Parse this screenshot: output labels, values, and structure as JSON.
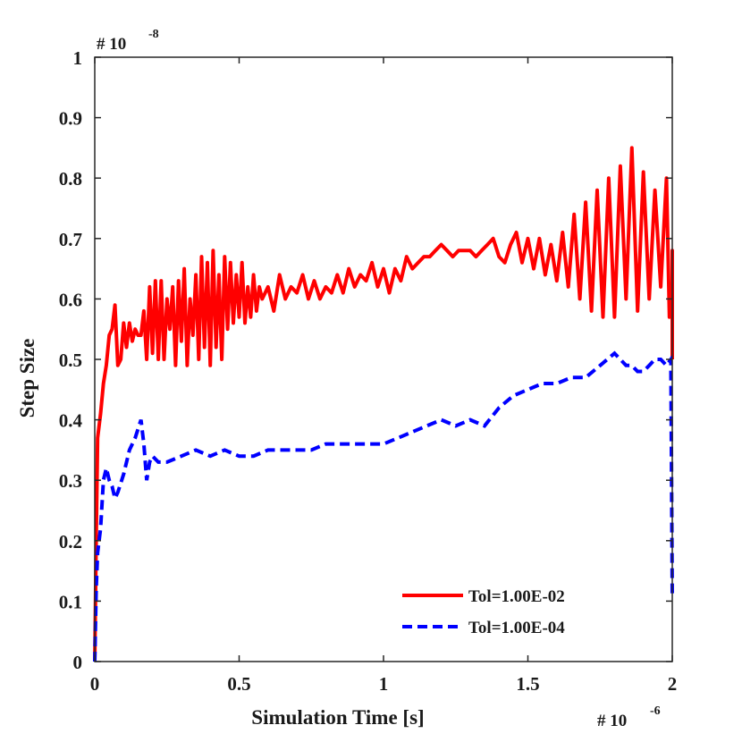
{
  "chart_data": {
    "type": "line",
    "xlabel": "Simulation Time [s]",
    "ylabel": "Step Size",
    "x_exponent_prefix": "# 10",
    "x_exponent_power": "-6",
    "y_exponent_prefix": "# 10",
    "y_exponent_power": "-8",
    "xlim": [
      0,
      2
    ],
    "ylim": [
      0,
      1
    ],
    "xticks": [
      0,
      0.5,
      1,
      1.5,
      2
    ],
    "xtick_labels": [
      "0",
      "0.5",
      "1",
      "1.5",
      "2"
    ],
    "yticks": [
      0,
      0.1,
      0.2,
      0.3,
      0.4,
      0.5,
      0.6,
      0.7,
      0.8,
      0.9,
      1
    ],
    "ytick_labels": [
      "0",
      "0.1",
      "0.2",
      "0.3",
      "0.4",
      "0.5",
      "0.6",
      "0.7",
      "0.8",
      "0.9",
      "1"
    ],
    "grid": false,
    "legend_position": "bottom-right",
    "series": [
      {
        "name": "Tol=1.00E-02",
        "color": "#ff0000",
        "style": "solid",
        "x": [
          0,
          0.005,
          0.01,
          0.02,
          0.03,
          0.04,
          0.05,
          0.06,
          0.07,
          0.08,
          0.09,
          0.1,
          0.11,
          0.12,
          0.13,
          0.14,
          0.15,
          0.16,
          0.17,
          0.18,
          0.19,
          0.2,
          0.21,
          0.22,
          0.23,
          0.24,
          0.25,
          0.26,
          0.27,
          0.28,
          0.29,
          0.3,
          0.31,
          0.32,
          0.33,
          0.34,
          0.35,
          0.36,
          0.37,
          0.38,
          0.39,
          0.4,
          0.41,
          0.42,
          0.43,
          0.44,
          0.45,
          0.46,
          0.47,
          0.48,
          0.49,
          0.5,
          0.51,
          0.52,
          0.53,
          0.54,
          0.55,
          0.56,
          0.57,
          0.58,
          0.59,
          0.6,
          0.62,
          0.64,
          0.66,
          0.68,
          0.7,
          0.72,
          0.74,
          0.76,
          0.78,
          0.8,
          0.82,
          0.84,
          0.86,
          0.88,
          0.9,
          0.92,
          0.94,
          0.96,
          0.98,
          1.0,
          1.02,
          1.04,
          1.06,
          1.08,
          1.1,
          1.12,
          1.14,
          1.16,
          1.18,
          1.2,
          1.22,
          1.24,
          1.26,
          1.28,
          1.3,
          1.32,
          1.34,
          1.36,
          1.38,
          1.4,
          1.42,
          1.44,
          1.46,
          1.48,
          1.5,
          1.52,
          1.54,
          1.56,
          1.58,
          1.6,
          1.62,
          1.64,
          1.66,
          1.68,
          1.7,
          1.72,
          1.74,
          1.76,
          1.78,
          1.8,
          1.82,
          1.84,
          1.86,
          1.88,
          1.9,
          1.92,
          1.94,
          1.96,
          1.98,
          1.99,
          2.0
        ],
        "y": [
          0,
          0.2,
          0.37,
          0.41,
          0.46,
          0.49,
          0.54,
          0.55,
          0.59,
          0.49,
          0.5,
          0.56,
          0.52,
          0.56,
          0.53,
          0.55,
          0.54,
          0.54,
          0.58,
          0.5,
          0.62,
          0.51,
          0.63,
          0.5,
          0.63,
          0.5,
          0.6,
          0.55,
          0.62,
          0.49,
          0.63,
          0.53,
          0.65,
          0.49,
          0.6,
          0.54,
          0.64,
          0.5,
          0.67,
          0.52,
          0.66,
          0.49,
          0.68,
          0.52,
          0.64,
          0.5,
          0.67,
          0.55,
          0.66,
          0.56,
          0.64,
          0.57,
          0.66,
          0.56,
          0.62,
          0.57,
          0.64,
          0.58,
          0.62,
          0.6,
          0.61,
          0.62,
          0.58,
          0.64,
          0.6,
          0.62,
          0.61,
          0.64,
          0.6,
          0.63,
          0.6,
          0.62,
          0.61,
          0.64,
          0.61,
          0.65,
          0.62,
          0.64,
          0.63,
          0.66,
          0.62,
          0.65,
          0.61,
          0.65,
          0.63,
          0.67,
          0.65,
          0.66,
          0.67,
          0.67,
          0.68,
          0.69,
          0.68,
          0.67,
          0.68,
          0.68,
          0.68,
          0.67,
          0.68,
          0.69,
          0.7,
          0.67,
          0.66,
          0.69,
          0.71,
          0.66,
          0.7,
          0.65,
          0.7,
          0.64,
          0.69,
          0.63,
          0.71,
          0.62,
          0.74,
          0.6,
          0.76,
          0.58,
          0.78,
          0.57,
          0.8,
          0.57,
          0.82,
          0.6,
          0.85,
          0.58,
          0.81,
          0.6,
          0.78,
          0.62,
          0.8,
          0.57,
          0.62
        ],
        "end_tail_y": [
          0.68,
          0.5
        ]
      },
      {
        "name": "Tol=1.00E-04",
        "color": "#0000ff",
        "style": "dashed",
        "x": [
          0,
          0.005,
          0.01,
          0.02,
          0.03,
          0.04,
          0.05,
          0.06,
          0.07,
          0.08,
          0.1,
          0.12,
          0.14,
          0.16,
          0.17,
          0.18,
          0.19,
          0.2,
          0.22,
          0.25,
          0.3,
          0.35,
          0.4,
          0.45,
          0.5,
          0.55,
          0.6,
          0.65,
          0.7,
          0.75,
          0.8,
          0.85,
          0.9,
          0.95,
          1.0,
          1.05,
          1.1,
          1.15,
          1.2,
          1.25,
          1.3,
          1.35,
          1.4,
          1.45,
          1.5,
          1.55,
          1.6,
          1.65,
          1.7,
          1.75,
          1.8,
          1.82,
          1.84,
          1.86,
          1.88,
          1.9,
          1.92,
          1.94,
          1.96,
          1.98,
          1.995,
          2.0
        ],
        "y": [
          0,
          0.12,
          0.18,
          0.22,
          0.3,
          0.32,
          0.3,
          0.29,
          0.27,
          0.28,
          0.31,
          0.35,
          0.37,
          0.4,
          0.36,
          0.3,
          0.33,
          0.34,
          0.33,
          0.33,
          0.34,
          0.35,
          0.34,
          0.35,
          0.34,
          0.34,
          0.35,
          0.35,
          0.35,
          0.35,
          0.36,
          0.36,
          0.36,
          0.36,
          0.36,
          0.37,
          0.38,
          0.39,
          0.4,
          0.39,
          0.4,
          0.39,
          0.42,
          0.44,
          0.45,
          0.46,
          0.46,
          0.47,
          0.47,
          0.49,
          0.51,
          0.5,
          0.49,
          0.49,
          0.48,
          0.48,
          0.49,
          0.5,
          0.5,
          0.49,
          0.5,
          0.11
        ]
      }
    ]
  }
}
